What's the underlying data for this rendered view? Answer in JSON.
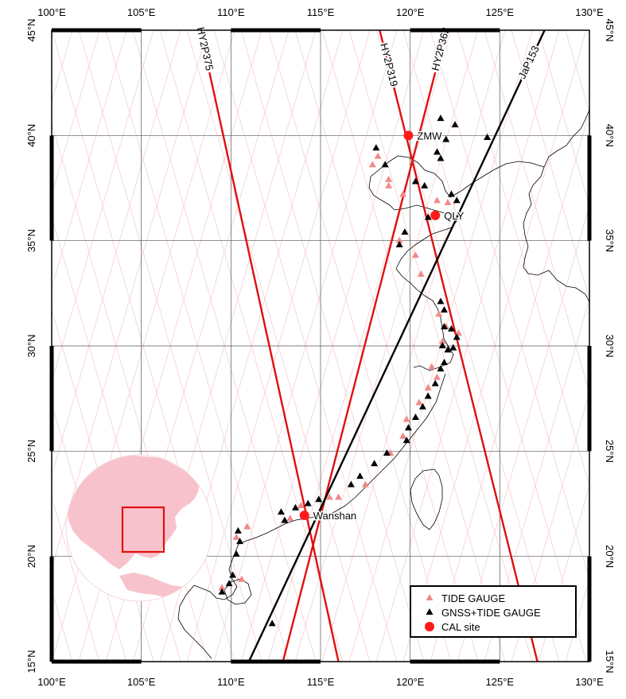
{
  "map": {
    "lon_range": [
      100,
      130
    ],
    "lat_range": [
      15,
      45
    ],
    "grid_step_deg": 5,
    "colors": {
      "frame": "#000000",
      "grid": "#555555",
      "background_tracks": "#f3c9c9",
      "red_track": "#e01010",
      "black_track": "#000000",
      "tide_gauge": "#f08a8a",
      "gnss_tide_gauge": "#000000",
      "cal_site": "#ff1a1a",
      "globe": "#f8c2cc",
      "coastline": "#000000"
    }
  },
  "axes": {
    "lon_labels": [
      "100°E",
      "105°E",
      "110°E",
      "115°E",
      "120°E",
      "125°E",
      "130°E"
    ],
    "lat_labels": [
      "15°N",
      "20°N",
      "25°N",
      "30°N",
      "35°N",
      "40°N",
      "45°N"
    ]
  },
  "tracks": [
    {
      "name": "HY2P375",
      "color": "red",
      "start": [
        108.8,
        43.0
      ],
      "end": [
        116.0,
        15.0
      ]
    },
    {
      "name": "HY2P319",
      "color": "red",
      "start": [
        118.3,
        45.0
      ],
      "end": [
        127.1,
        15.0
      ]
    },
    {
      "name": "HY2P362",
      "color": "red",
      "start": [
        121.4,
        43.0
      ],
      "end": [
        112.9,
        15.0
      ]
    },
    {
      "name": "JaP153",
      "color": "black",
      "start": [
        127.5,
        45.0
      ],
      "end": [
        111.0,
        15.0
      ]
    }
  ],
  "cal_sites": [
    {
      "name": "ZMW",
      "lon": 119.9,
      "lat": 40.0
    },
    {
      "name": "QLY",
      "lon": 121.4,
      "lat": 36.2
    },
    {
      "name": "Wanshan",
      "lon": 114.1,
      "lat": 21.95
    }
  ],
  "tide_gauges": [
    [
      118.2,
      39.0
    ],
    [
      117.9,
      38.6
    ],
    [
      118.8,
      37.6
    ],
    [
      119.6,
      37.2
    ],
    [
      121.5,
      36.9
    ],
    [
      119.4,
      35.0
    ],
    [
      120.3,
      34.3
    ],
    [
      120.6,
      33.4
    ],
    [
      121.6,
      31.5
    ],
    [
      122.0,
      30.9
    ],
    [
      121.8,
      30.2
    ],
    [
      121.5,
      28.5
    ],
    [
      121.0,
      28.0
    ],
    [
      120.5,
      27.3
    ],
    [
      119.8,
      26.5
    ],
    [
      119.6,
      25.7
    ],
    [
      118.9,
      24.9
    ],
    [
      117.5,
      23.4
    ],
    [
      116.0,
      22.8
    ],
    [
      115.5,
      22.8
    ],
    [
      113.3,
      21.8
    ],
    [
      110.9,
      21.4
    ],
    [
      110.3,
      20.9
    ],
    [
      109.5,
      18.5
    ],
    [
      110.6,
      18.9
    ],
    [
      122.7,
      30.6
    ],
    [
      121.2,
      29.0
    ],
    [
      122.1,
      36.8
    ],
    [
      113.9,
      22.4
    ],
    [
      118.8,
      37.9
    ]
  ],
  "gnss_tide_gauges": [
    [
      121.7,
      40.8
    ],
    [
      122.5,
      40.5
    ],
    [
      122.0,
      39.8
    ],
    [
      121.5,
      39.2
    ],
    [
      124.3,
      39.9
    ],
    [
      118.1,
      39.4
    ],
    [
      118.6,
      38.6
    ],
    [
      120.3,
      37.8
    ],
    [
      120.8,
      37.6
    ],
    [
      122.3,
      37.2
    ],
    [
      122.6,
      36.9
    ],
    [
      121.7,
      38.9
    ],
    [
      121.0,
      36.1
    ],
    [
      119.7,
      35.4
    ],
    [
      119.4,
      34.8
    ],
    [
      121.7,
      32.1
    ],
    [
      121.9,
      31.7
    ],
    [
      121.9,
      30.9
    ],
    [
      122.3,
      30.8
    ],
    [
      122.6,
      30.4
    ],
    [
      121.8,
      30.0
    ],
    [
      122.1,
      29.8
    ],
    [
      122.4,
      29.9
    ],
    [
      121.9,
      29.2
    ],
    [
      121.7,
      28.9
    ],
    [
      121.4,
      28.2
    ],
    [
      121.0,
      27.6
    ],
    [
      120.7,
      27.1
    ],
    [
      120.3,
      26.6
    ],
    [
      119.9,
      26.1
    ],
    [
      119.8,
      25.5
    ],
    [
      118.7,
      24.9
    ],
    [
      118.0,
      24.4
    ],
    [
      117.2,
      23.8
    ],
    [
      116.7,
      23.4
    ],
    [
      114.9,
      22.7
    ],
    [
      114.3,
      22.5
    ],
    [
      113.6,
      22.3
    ],
    [
      112.8,
      22.1
    ],
    [
      110.4,
      21.2
    ],
    [
      110.5,
      20.7
    ],
    [
      110.3,
      20.1
    ],
    [
      110.1,
      19.1
    ],
    [
      109.9,
      18.7
    ],
    [
      109.5,
      18.3
    ],
    [
      112.3,
      16.8
    ],
    [
      113.0,
      21.7
    ]
  ],
  "legend": {
    "items": [
      {
        "label": "TIDE GAUGE",
        "symbol": "tide_gauge"
      },
      {
        "label": "GNSS+TIDE GAUGE",
        "symbol": "gnss_tide_gauge"
      },
      {
        "label": "CAL site",
        "symbol": "cal_site"
      }
    ]
  }
}
